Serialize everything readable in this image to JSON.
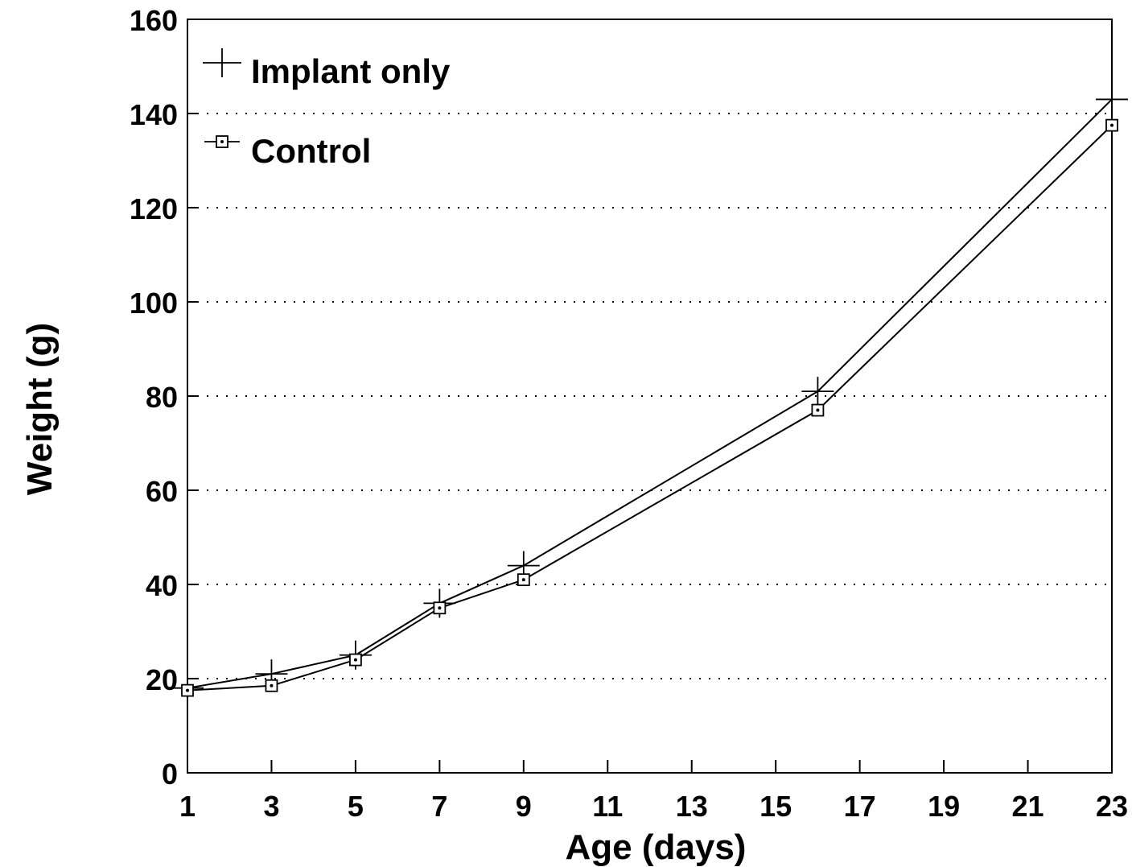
{
  "chart_data": {
    "type": "line",
    "title": "",
    "xlabel": "Age (days)",
    "ylabel": "Weight (g)",
    "xlim": [
      1,
      23
    ],
    "ylim": [
      0,
      160
    ],
    "xticks": [
      1,
      3,
      5,
      7,
      9,
      11,
      13,
      15,
      17,
      19,
      21,
      23
    ],
    "yticks": [
      0,
      20,
      40,
      60,
      80,
      100,
      120,
      140,
      160
    ],
    "grid": "horizontal dotted",
    "legend_position": "top-left",
    "series": [
      {
        "name": "Implant only",
        "marker": "plus",
        "x": [
          1,
          3,
          5,
          7,
          9,
          16,
          23
        ],
        "y": [
          18,
          21,
          25,
          36,
          44,
          81,
          143
        ]
      },
      {
        "name": "Control",
        "marker": "square",
        "x": [
          1,
          3,
          5,
          7,
          9,
          16,
          23
        ],
        "y": [
          17.5,
          18.5,
          24,
          35,
          41,
          77,
          137.5
        ]
      }
    ]
  }
}
